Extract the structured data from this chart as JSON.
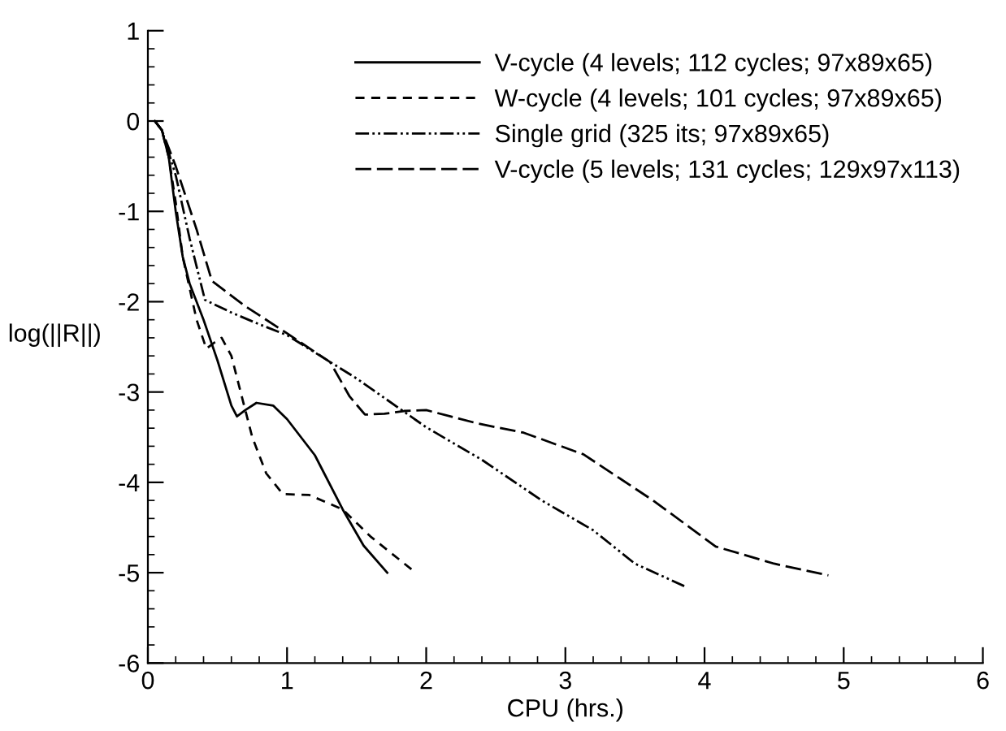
{
  "chart_data": {
    "type": "line",
    "xlabel": "CPU (hrs.)",
    "ylabel": "log(||R||)",
    "xlim": [
      0,
      6
    ],
    "ylim": [
      -6,
      1
    ],
    "xticks": [
      0,
      1,
      2,
      3,
      4,
      5,
      6
    ],
    "yticks": [
      -6,
      -5,
      -4,
      -3,
      -2,
      -1,
      0,
      1
    ],
    "legend": "top right",
    "grid": false,
    "series": [
      {
        "name": "V-cycle (4 levels; 112 cycles; 97x89x65)",
        "color": "#000000",
        "line_style": "solid",
        "x": [
          0.05,
          0.1,
          0.15,
          0.2,
          0.25,
          0.3,
          0.4,
          0.5,
          0.6,
          0.64,
          0.7,
          0.78,
          0.9,
          1.0,
          1.2,
          1.4,
          1.55,
          1.72
        ],
        "values": [
          0,
          -0.1,
          -0.4,
          -1.0,
          -1.5,
          -1.8,
          -2.2,
          -2.65,
          -3.15,
          -3.27,
          -3.2,
          -3.12,
          -3.15,
          -3.3,
          -3.7,
          -4.3,
          -4.7,
          -5.0
        ]
      },
      {
        "name": "W-cycle (4 levels; 101 cycles; 97x89x65)",
        "color": "#000000",
        "line_style": "dashed",
        "x": [
          0.05,
          0.1,
          0.15,
          0.2,
          0.25,
          0.35,
          0.42,
          0.48,
          0.53,
          0.6,
          0.65,
          0.75,
          0.85,
          0.97,
          1.16,
          1.4,
          1.6,
          1.9
        ],
        "values": [
          0,
          -0.1,
          -0.4,
          -0.9,
          -1.5,
          -2.2,
          -2.52,
          -2.45,
          -2.4,
          -2.6,
          -2.9,
          -3.5,
          -3.9,
          -4.13,
          -4.14,
          -4.3,
          -4.6,
          -4.97
        ]
      },
      {
        "name": "Single grid (325 its; 97x89x65)",
        "color": "#000000",
        "line_style": "dashdot",
        "x": [
          0.05,
          0.1,
          0.2,
          0.3,
          0.41,
          0.6,
          0.8,
          1.0,
          1.5,
          2.0,
          2.4,
          2.83,
          3.2,
          3.5,
          3.87
        ],
        "values": [
          0,
          -0.1,
          -0.6,
          -1.3,
          -1.98,
          -2.12,
          -2.25,
          -2.37,
          -2.85,
          -3.39,
          -3.75,
          -4.2,
          -4.53,
          -4.9,
          -5.16
        ]
      },
      {
        "name": "V-cycle (5 levels; 131 cycles; 129x97x113)",
        "color": "#000000",
        "line_style": "longdash",
        "x": [
          0.05,
          0.1,
          0.2,
          0.35,
          0.46,
          0.7,
          1.0,
          1.31,
          1.45,
          1.56,
          1.7,
          1.84,
          2.0,
          2.375,
          2.7,
          3.13,
          3.63,
          4.08,
          4.5,
          4.89
        ],
        "values": [
          0,
          -0.1,
          -0.5,
          -1.2,
          -1.77,
          -2.05,
          -2.35,
          -2.67,
          -3.05,
          -3.25,
          -3.24,
          -3.21,
          -3.2,
          -3.35,
          -3.45,
          -3.69,
          -4.2,
          -4.71,
          -4.9,
          -5.03
        ]
      }
    ]
  }
}
